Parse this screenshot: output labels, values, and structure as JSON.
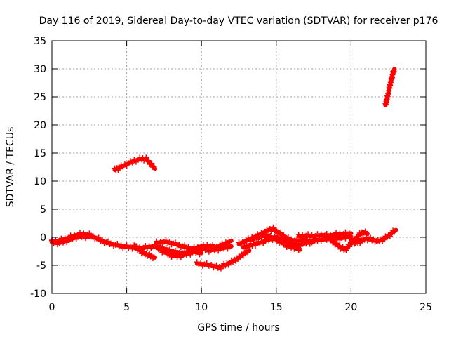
{
  "chart_data": {
    "type": "scatter",
    "title": "Day 116 of 2019, Sidereal Day-to-day VTEC variation (SDTVAR) for receiver p176",
    "xlabel": "GPS time / hours",
    "ylabel": "SDTVAR / TECUs",
    "xlim": [
      0,
      25
    ],
    "ylim": [
      -10,
      35
    ],
    "xticks": [
      0,
      5,
      10,
      15,
      20,
      25
    ],
    "yticks": [
      -10,
      -5,
      0,
      5,
      10,
      15,
      20,
      25,
      30,
      35
    ],
    "xtick_labels": [
      "0",
      "5",
      "10",
      "15",
      "20",
      "25"
    ],
    "ytick_labels": [
      "-10",
      "-5",
      "0",
      "5",
      "10",
      "15",
      "20",
      "25",
      "30",
      "35"
    ],
    "grid": true,
    "series_color": "#ff0000",
    "marker": "plus",
    "segments": [
      {
        "name": "arc-main-1",
        "points": [
          [
            0,
            -0.8
          ],
          [
            0.5,
            -0.6
          ],
          [
            1.0,
            -0.2
          ],
          [
            1.5,
            0.3
          ],
          [
            2.0,
            0.6
          ],
          [
            2.5,
            0.4
          ],
          [
            3.0,
            -0.2
          ],
          [
            3.5,
            -0.8
          ],
          [
            4.0,
            -1.2
          ],
          [
            4.5,
            -1.5
          ],
          [
            5.0,
            -1.7
          ],
          [
            5.5,
            -1.8
          ],
          [
            6.0,
            -1.9
          ],
          [
            6.5,
            -1.7
          ],
          [
            7.0,
            -1.6
          ]
        ]
      },
      {
        "name": "arc-main-1b",
        "points": [
          [
            0,
            -0.9
          ],
          [
            0.5,
            -1.0
          ],
          [
            1.0,
            -0.6
          ],
          [
            1.5,
            -0.1
          ],
          [
            2.0,
            0.2
          ],
          [
            2.5,
            0.1
          ]
        ]
      },
      {
        "name": "arc-hump",
        "points": [
          [
            4.2,
            12.0
          ],
          [
            4.5,
            12.4
          ],
          [
            5.0,
            13.0
          ],
          [
            5.5,
            13.6
          ],
          [
            6.0,
            14.0
          ],
          [
            6.3,
            13.9
          ],
          [
            6.6,
            13.1
          ],
          [
            6.9,
            12.2
          ]
        ]
      },
      {
        "name": "arc-drop",
        "points": [
          [
            5.5,
            -1.7
          ],
          [
            5.8,
            -2.1
          ],
          [
            6.0,
            -2.6
          ],
          [
            6.3,
            -3.0
          ],
          [
            6.6,
            -3.3
          ],
          [
            6.9,
            -3.6
          ]
        ]
      },
      {
        "name": "arc-mid-a",
        "points": [
          [
            7.0,
            -1.0
          ],
          [
            7.5,
            -0.8
          ],
          [
            8.0,
            -1.0
          ],
          [
            8.5,
            -1.4
          ],
          [
            9.0,
            -1.8
          ],
          [
            9.5,
            -2.2
          ],
          [
            10.0,
            -2.0
          ],
          [
            10.5,
            -2.3
          ],
          [
            11.0,
            -2.2
          ],
          [
            11.5,
            -1.9
          ],
          [
            12.0,
            -1.6
          ]
        ]
      },
      {
        "name": "arc-mid-b",
        "points": [
          [
            7.0,
            -1.8
          ],
          [
            7.5,
            -2.6
          ],
          [
            8.0,
            -3.2
          ],
          [
            8.5,
            -3.4
          ],
          [
            9.0,
            -3.0
          ],
          [
            9.5,
            -2.6
          ],
          [
            10.0,
            -2.8
          ]
        ]
      },
      {
        "name": "arc-mid-c",
        "points": [
          [
            7.0,
            -1.5
          ],
          [
            7.5,
            -2.1
          ],
          [
            8.0,
            -2.4
          ],
          [
            8.5,
            -2.9
          ],
          [
            9.0,
            -2.7
          ],
          [
            9.5,
            -2.0
          ],
          [
            10.0,
            -1.6
          ],
          [
            10.5,
            -1.5
          ],
          [
            11.0,
            -1.8
          ],
          [
            11.5,
            -1.2
          ],
          [
            12.0,
            -0.6
          ]
        ]
      },
      {
        "name": "arc-low",
        "points": [
          [
            9.7,
            -4.7
          ],
          [
            10.2,
            -4.8
          ],
          [
            10.8,
            -5.1
          ],
          [
            11.2,
            -5.4
          ],
          [
            11.6,
            -4.9
          ],
          [
            12.0,
            -4.4
          ],
          [
            12.4,
            -3.8
          ],
          [
            12.8,
            -3.0
          ],
          [
            13.2,
            -2.4
          ]
        ]
      },
      {
        "name": "arc-rise-a",
        "points": [
          [
            12.5,
            -1.2
          ],
          [
            13.0,
            -0.6
          ],
          [
            13.5,
            0.0
          ],
          [
            14.0,
            0.6
          ],
          [
            14.5,
            1.3
          ],
          [
            14.8,
            1.5
          ],
          [
            15.2,
            0.8
          ],
          [
            15.6,
            0.0
          ],
          [
            16.0,
            -0.5
          ],
          [
            16.5,
            -0.6
          ],
          [
            17.0,
            -0.3
          ]
        ]
      },
      {
        "name": "arc-rise-b",
        "points": [
          [
            12.8,
            -1.8
          ],
          [
            13.2,
            -1.5
          ],
          [
            13.6,
            -1.2
          ],
          [
            14.0,
            -0.9
          ],
          [
            14.5,
            -0.4
          ],
          [
            15.0,
            0.0
          ],
          [
            15.5,
            -0.6
          ],
          [
            16.0,
            -1.2
          ],
          [
            16.5,
            -1.4
          ],
          [
            17.0,
            -1.0
          ],
          [
            17.5,
            -0.8
          ]
        ]
      },
      {
        "name": "arc-rise-c",
        "points": [
          [
            13.4,
            -0.4
          ],
          [
            13.8,
            0.0
          ],
          [
            14.2,
            0.3
          ],
          [
            14.6,
            0.1
          ],
          [
            15.0,
            -0.4
          ],
          [
            15.4,
            -1.0
          ],
          [
            15.8,
            -1.6
          ],
          [
            16.2,
            -1.8
          ],
          [
            16.6,
            -2.2
          ]
        ]
      },
      {
        "name": "arc-flat",
        "points": [
          [
            16.5,
            0.2
          ],
          [
            17.0,
            0.3
          ],
          [
            17.5,
            0.2
          ],
          [
            18.0,
            0.4
          ],
          [
            18.5,
            0.3
          ],
          [
            19.0,
            0.5
          ],
          [
            19.5,
            0.6
          ],
          [
            20.0,
            0.7
          ]
        ]
      },
      {
        "name": "arc-flat-b",
        "points": [
          [
            17.0,
            -0.7
          ],
          [
            17.5,
            -0.6
          ],
          [
            18.0,
            -0.4
          ],
          [
            18.5,
            -0.3
          ],
          [
            19.0,
            -0.2
          ],
          [
            19.5,
            -0.1
          ],
          [
            20.0,
            0.1
          ]
        ]
      },
      {
        "name": "arc-dip-a",
        "points": [
          [
            18.7,
            -0.6
          ],
          [
            19.0,
            -1.2
          ],
          [
            19.3,
            -1.8
          ],
          [
            19.6,
            -2.2
          ],
          [
            19.9,
            -1.4
          ],
          [
            20.2,
            -0.5
          ],
          [
            20.5,
            0.3
          ],
          [
            20.8,
            0.9
          ],
          [
            21.1,
            0.6
          ]
        ]
      },
      {
        "name": "arc-dip-b",
        "points": [
          [
            20.0,
            -0.5
          ],
          [
            20.3,
            -1.0
          ],
          [
            20.6,
            -0.7
          ],
          [
            21.0,
            -0.2
          ],
          [
            21.4,
            -0.4
          ],
          [
            21.8,
            -0.7
          ],
          [
            22.2,
            -0.3
          ],
          [
            22.6,
            0.5
          ],
          [
            23.0,
            1.3
          ]
        ]
      },
      {
        "name": "arc-spike",
        "points": [
          [
            22.3,
            23.5
          ],
          [
            22.4,
            24.6
          ],
          [
            22.5,
            25.8
          ],
          [
            22.6,
            27.0
          ],
          [
            22.7,
            28.2
          ],
          [
            22.8,
            29.2
          ],
          [
            22.9,
            30.0
          ]
        ]
      }
    ]
  }
}
